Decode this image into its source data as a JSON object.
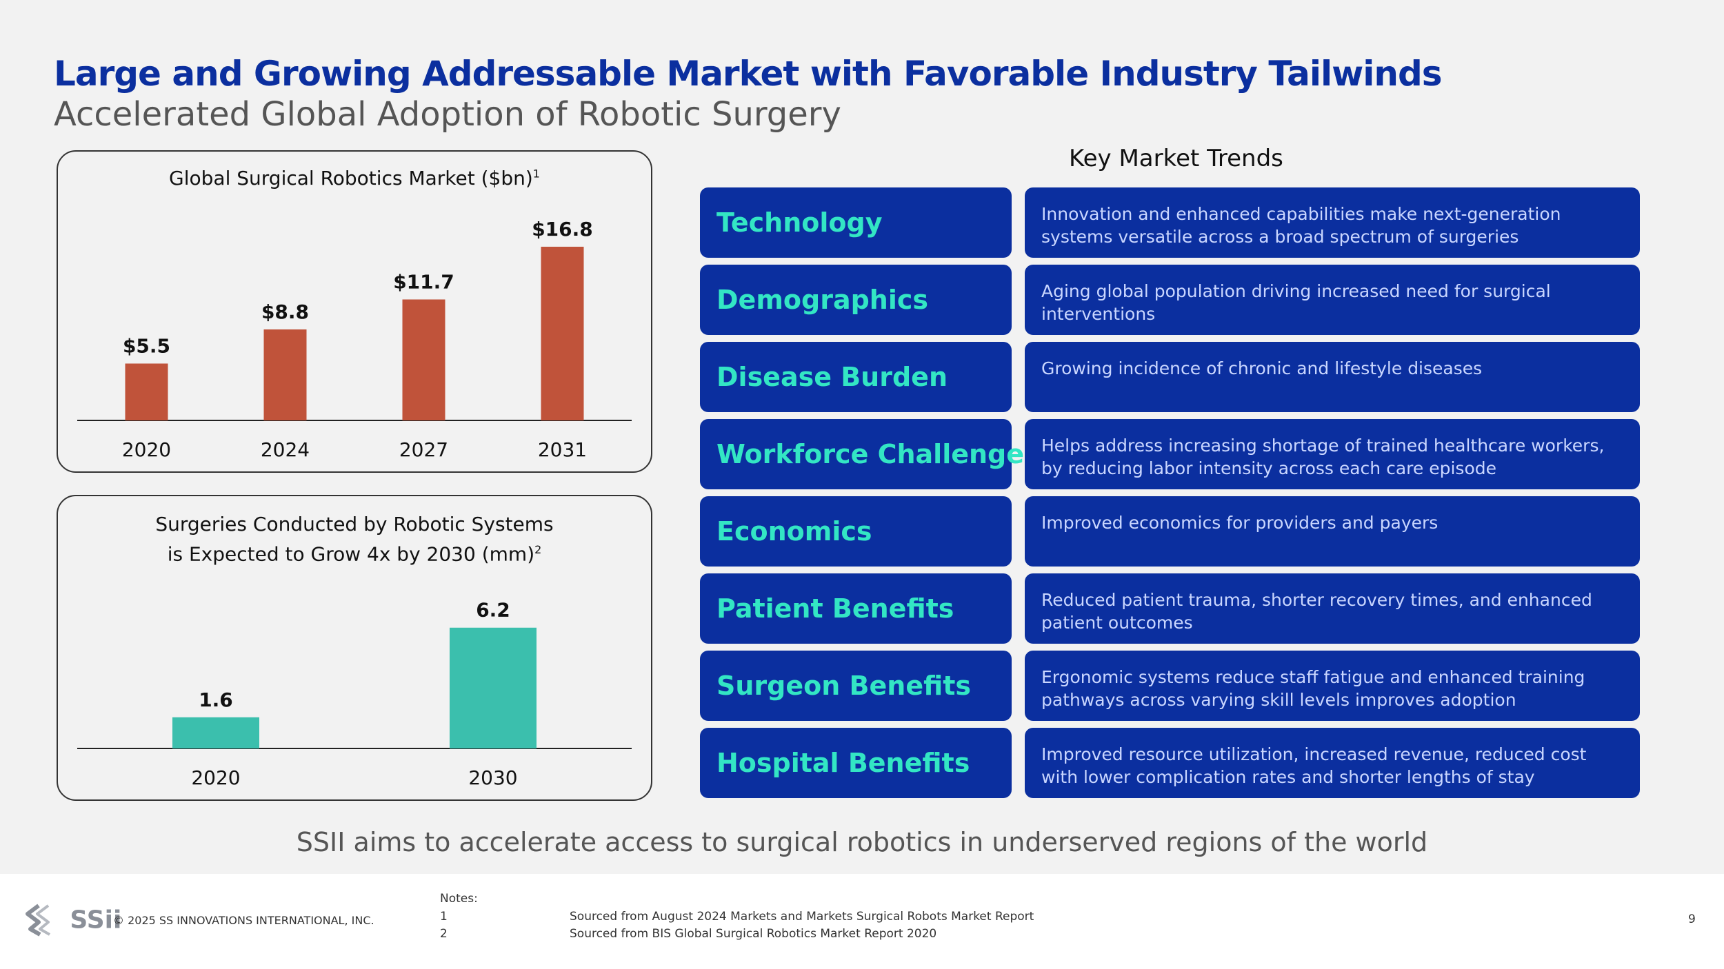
{
  "header": {
    "title": "Large and Growing Addressable Market with Favorable Industry Tailwinds",
    "subtitle": "Accelerated Global Adoption of Robotic Surgery"
  },
  "chart_data": [
    {
      "type": "bar",
      "title": "Global Surgical Robotics Market ($bn)",
      "title_footnote": "1",
      "categories": [
        "2020",
        "2024",
        "2027",
        "2031"
      ],
      "values": [
        5.5,
        8.8,
        11.7,
        16.8
      ],
      "value_labels": [
        "$5.5",
        "$8.8",
        "$11.7",
        "$16.8"
      ],
      "ylim": [
        0,
        20
      ],
      "color": "#c0533a",
      "grid": false
    },
    {
      "type": "bar",
      "title_line1": "Surgeries Conducted by Robotic Systems",
      "title_line2": "is Expected to Grow 4x by 2030 (mm)",
      "title_footnote": "2",
      "categories": [
        "2020",
        "2030"
      ],
      "values": [
        1.6,
        6.2
      ],
      "value_labels": [
        "1.6",
        "6.2"
      ],
      "ylim": [
        0,
        7.5
      ],
      "color": "#3bbfad",
      "grid": false
    }
  ],
  "trends": {
    "heading": "Key Market Trends",
    "items": [
      {
        "category": "Technology",
        "description": "Innovation and enhanced capabilities make next-generation systems versatile across a broad spectrum of surgeries"
      },
      {
        "category": "Demographics",
        "description": "Aging global population driving increased need for surgical interventions"
      },
      {
        "category": "Disease Burden",
        "description": "Growing incidence of chronic and lifestyle diseases"
      },
      {
        "category": "Workforce Challenges",
        "description": "Helps address increasing shortage of trained healthcare workers, by reducing labor intensity across each care episode"
      },
      {
        "category": "Economics",
        "description": "Improved economics for providers and payers"
      },
      {
        "category": "Patient Benefits",
        "description": "Reduced patient trauma, shorter recovery times, and enhanced patient outcomes"
      },
      {
        "category": "Surgeon Benefits",
        "description": "Ergonomic systems reduce staff fatigue and enhanced training pathways across varying skill levels improves adoption"
      },
      {
        "category": "Hospital Benefits",
        "description": "Improved resource utilization,  increased revenue, reduced cost with lower complication rates and shorter lengths of stay"
      }
    ]
  },
  "tagline": "SSII aims to accelerate access to surgical robotics in underserved regions of the world",
  "footer": {
    "logo_text": "SSii",
    "copyright": "© 2025 SS INNOVATIONS INTERNATIONAL, INC.",
    "notes_label": "Notes:",
    "notes": [
      {
        "num": "1",
        "text": "Sourced from August 2024 Markets and Markets Surgical Robots Market Report"
      },
      {
        "num": "2",
        "text": "Sourced from BIS Global Surgical Robotics Market Report 2020"
      }
    ],
    "page_number": "9"
  },
  "colors": {
    "title_blue": "#0b2f9f",
    "tile_blue": "#0b2f9f",
    "category_teal": "#33e6c4",
    "bar_rust": "#c0533a",
    "bar_teal": "#3bbfad"
  }
}
